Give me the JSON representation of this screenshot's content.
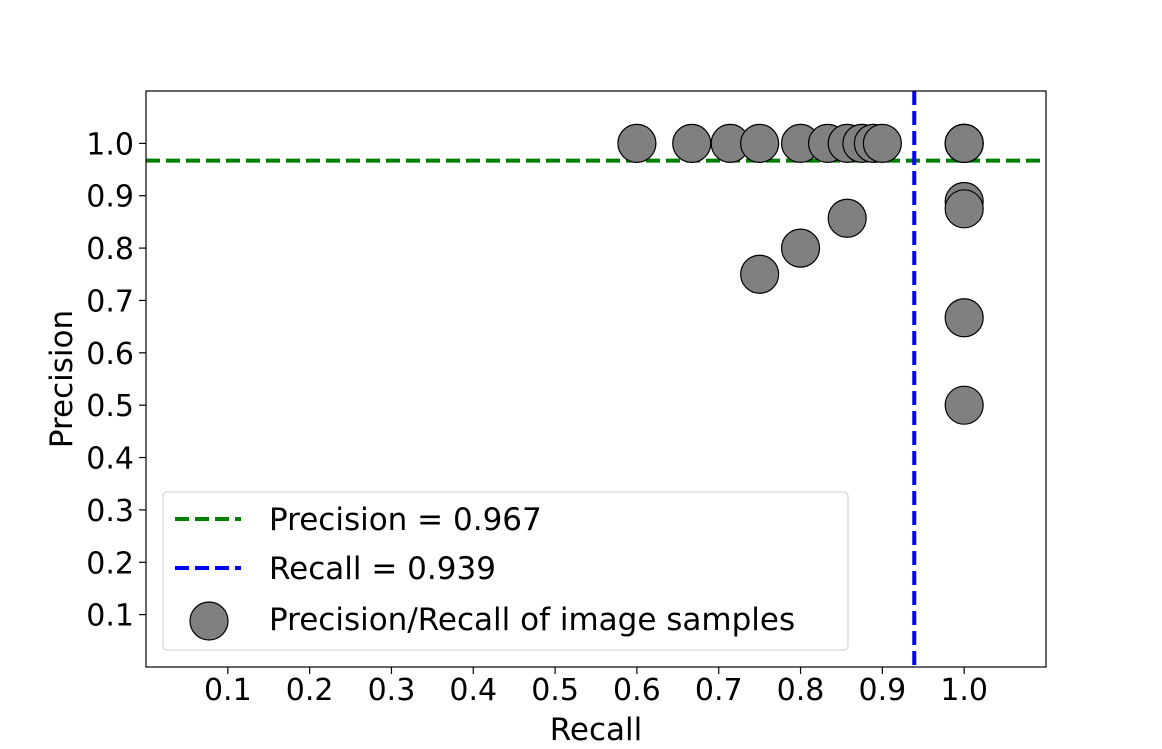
{
  "chart_data": {
    "type": "scatter",
    "title": "",
    "xlabel": "Recall",
    "ylabel": "Precision",
    "xlim": [
      0.0,
      1.1
    ],
    "ylim": [
      0.0,
      1.1
    ],
    "xticks": [
      0.1,
      0.2,
      0.3,
      0.4,
      0.5,
      0.6,
      0.7,
      0.8,
      0.9,
      1.0
    ],
    "yticks": [
      0.1,
      0.2,
      0.3,
      0.4,
      0.5,
      0.6,
      0.7,
      0.8,
      0.9,
      1.0
    ],
    "grid": false,
    "legend_position": "lower-left",
    "reference_lines": [
      {
        "orientation": "horizontal",
        "value": 0.967,
        "label": "Precision = 0.967",
        "color": "#008000",
        "style": "dashed"
      },
      {
        "orientation": "vertical",
        "value": 0.939,
        "label": "Recall = 0.939",
        "color": "#0000ff",
        "style": "dashed"
      }
    ],
    "series": [
      {
        "name": "Precision/Recall of image samples",
        "color": "#808080",
        "edge_color": "#000000",
        "x": [
          0.6,
          0.667,
          0.714,
          0.75,
          0.8,
          0.833,
          0.857,
          0.875,
          0.889,
          0.9,
          1.0,
          1.0,
          1.0,
          0.75,
          0.8,
          0.857,
          1.0,
          1.0,
          1.0,
          1.0
        ],
        "y": [
          1.0,
          1.0,
          1.0,
          1.0,
          1.0,
          1.0,
          1.0,
          1.0,
          1.0,
          1.0,
          1.0,
          1.0,
          1.0,
          0.75,
          0.8,
          0.857,
          0.889,
          0.875,
          0.667,
          0.5
        ]
      }
    ]
  }
}
